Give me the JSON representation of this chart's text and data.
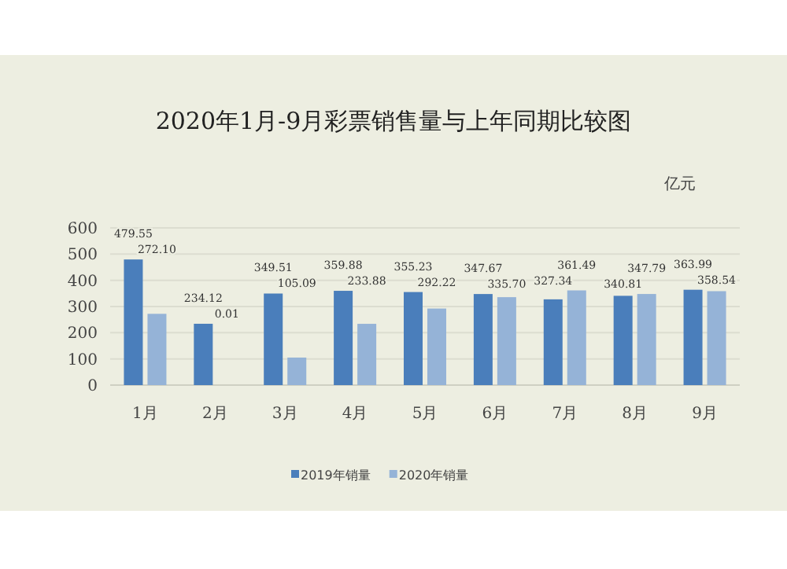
{
  "chart_data": {
    "type": "bar",
    "title": "2020年1月-9月彩票销售量与上年同期比较图",
    "ylabel": "亿元",
    "categories": [
      "1月",
      "2月",
      "3月",
      "4月",
      "5月",
      "6月",
      "7月",
      "8月",
      "9月"
    ],
    "series": [
      {
        "name": "2019年销量",
        "color": "#4a7ebb",
        "values": [
          479.55,
          234.12,
          349.51,
          359.88,
          355.23,
          347.67,
          327.34,
          340.81,
          363.99
        ]
      },
      {
        "name": "2020年销量",
        "color": "#95b3d7",
        "values": [
          272.1,
          0.01,
          105.09,
          233.88,
          292.22,
          335.7,
          361.49,
          347.79,
          358.54
        ]
      }
    ],
    "ylim": [
      0,
      600
    ],
    "yticks": [
      0,
      100,
      200,
      300,
      400,
      500,
      600
    ],
    "grid": "y",
    "legend": "bottom",
    "value_labels": [
      [
        "479.55",
        "234.12",
        "349.51",
        "359.88",
        "355.23",
        "347.67",
        "327.34",
        "340.81",
        "363.99"
      ],
      [
        "272.10",
        "0.01",
        "105.09",
        "233.88",
        "292.22",
        "335.70",
        "361.49",
        "347.79",
        "358.54"
      ]
    ]
  }
}
